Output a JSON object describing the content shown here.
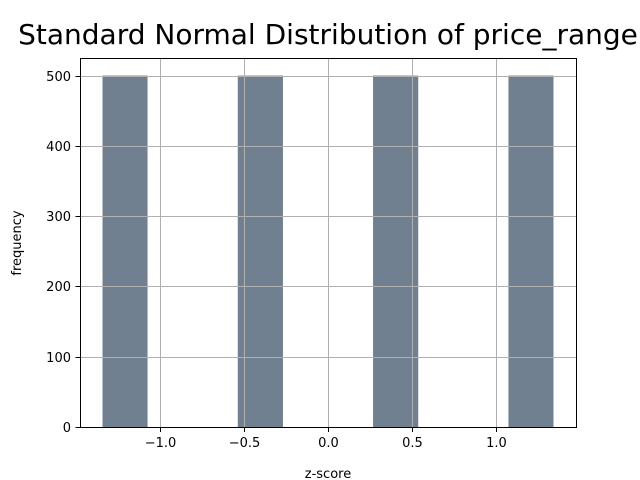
{
  "chart_data": {
    "type": "bar",
    "title": "Standard Normal Distribution of price_range",
    "xlabel": "z-score",
    "ylabel": "frequency",
    "bins": [
      {
        "x0": -1.342,
        "x1": -1.074,
        "value": 500
      },
      {
        "x0": -1.074,
        "x1": -0.805,
        "value": 0
      },
      {
        "x0": -0.805,
        "x1": -0.537,
        "value": 0
      },
      {
        "x0": -0.537,
        "x1": -0.268,
        "value": 500
      },
      {
        "x0": -0.268,
        "x1": 0.0,
        "value": 0
      },
      {
        "x0": 0.0,
        "x1": 0.268,
        "value": 0
      },
      {
        "x0": 0.268,
        "x1": 0.537,
        "value": 500
      },
      {
        "x0": 0.537,
        "x1": 0.805,
        "value": 0
      },
      {
        "x0": 0.805,
        "x1": 1.074,
        "value": 0
      },
      {
        "x0": 1.074,
        "x1": 1.342,
        "value": 500
      }
    ],
    "xlim": [
      -1.476,
      1.476
    ],
    "ylim": [
      0,
      525
    ],
    "xticks": [
      -1.0,
      -0.5,
      0.0,
      0.5,
      1.0
    ],
    "xtick_labels": [
      "−1.0",
      "−0.5",
      "0.0",
      "0.5",
      "1.0"
    ],
    "yticks": [
      0,
      100,
      200,
      300,
      400,
      500
    ],
    "ytick_labels": [
      "0",
      "100",
      "200",
      "300",
      "400",
      "500"
    ],
    "grid": true,
    "bar_color": "#708090"
  }
}
